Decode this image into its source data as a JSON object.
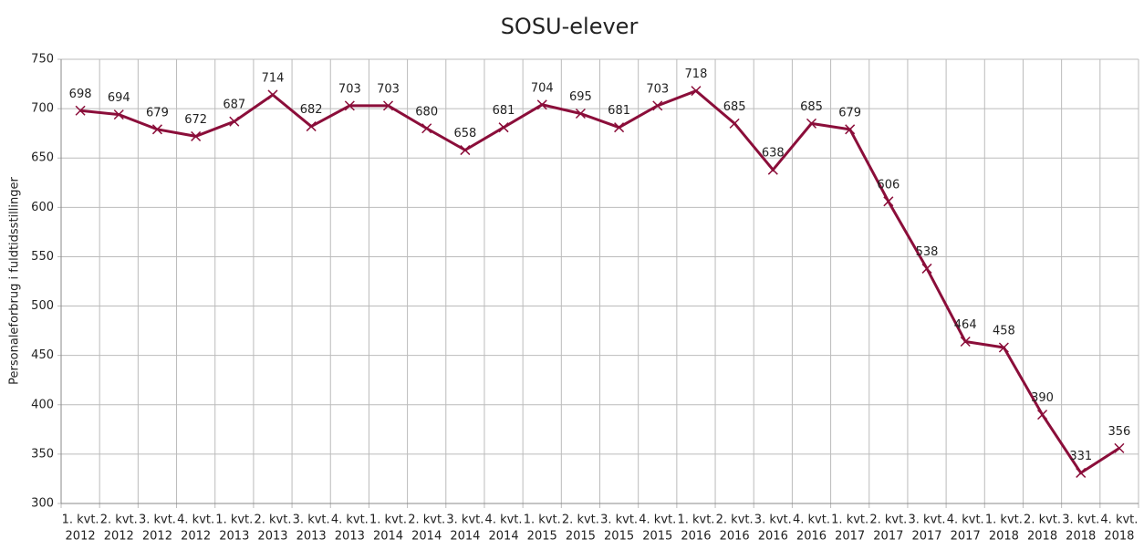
{
  "chart_data": {
    "type": "line",
    "title": "SOSU-elever",
    "y_label": "Personaleforbrug i fuldtidsstillinger",
    "categories": [
      [
        "1. kvt.",
        "2012"
      ],
      [
        "2. kvt.",
        "2012"
      ],
      [
        "3. kvt.",
        "2012"
      ],
      [
        "4. kvt.",
        "2012"
      ],
      [
        "1. kvt.",
        "2013"
      ],
      [
        "2. kvt.",
        "2013"
      ],
      [
        "3. kvt.",
        "2013"
      ],
      [
        "4. kvt.",
        "2013"
      ],
      [
        "1. kvt.",
        "2014"
      ],
      [
        "2. kvt.",
        "2014"
      ],
      [
        "3. kvt.",
        "2014"
      ],
      [
        "4. kvt.",
        "2014"
      ],
      [
        "1. kvt.",
        "2015"
      ],
      [
        "2. kvt.",
        "2015"
      ],
      [
        "3. kvt.",
        "2015"
      ],
      [
        "4. kvt.",
        "2015"
      ],
      [
        "1. kvt.",
        "2016"
      ],
      [
        "2. kvt.",
        "2016"
      ],
      [
        "3. kvt.",
        "2016"
      ],
      [
        "4. kvt.",
        "2016"
      ],
      [
        "1. kvt.",
        "2017"
      ],
      [
        "2. kvt.",
        "2017"
      ],
      [
        "3. kvt.",
        "2017"
      ],
      [
        "4. kvt.",
        "2017"
      ],
      [
        "1. kvt.",
        "2018"
      ],
      [
        "2. kvt.",
        "2018"
      ],
      [
        "3. kvt.",
        "2018"
      ],
      [
        "4. kvt.",
        "2018"
      ]
    ],
    "values": [
      698,
      694,
      679,
      672,
      687,
      714,
      682,
      703,
      703,
      680,
      658,
      681,
      704,
      695,
      681,
      703,
      718,
      685,
      638,
      685,
      679,
      606,
      538,
      464,
      458,
      390,
      331,
      356
    ],
    "color": "#8b0e3a",
    "ylim": [
      300,
      750
    ],
    "yticks": [
      300,
      350,
      400,
      450,
      500,
      550,
      600,
      650,
      700,
      750
    ],
    "grid": true
  }
}
